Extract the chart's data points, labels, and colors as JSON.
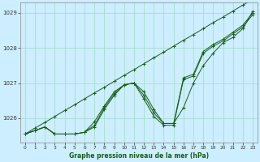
{
  "bg_color": "#cceeff",
  "grid_color": "#aaddcc",
  "line_color": "#1a5c1a",
  "xlabel": "Graphe pression niveau de la mer (hPa)",
  "xlim": [
    -0.5,
    23.5
  ],
  "ylim": [
    1025.3,
    1029.3
  ],
  "yticks": [
    1026,
    1027,
    1028,
    1029
  ],
  "xticks": [
    0,
    1,
    2,
    3,
    4,
    5,
    6,
    7,
    8,
    9,
    10,
    11,
    12,
    13,
    14,
    15,
    16,
    17,
    18,
    19,
    20,
    21,
    22,
    23
  ],
  "series": [
    [
      1025.55,
      1025.65,
      1025.75,
      1025.55,
      1025.55,
      1025.55,
      1025.6,
      1025.75,
      1026.25,
      1026.65,
      1026.95,
      1027.0,
      1026.75,
      1026.25,
      1025.85,
      1025.85,
      1026.3,
      1027.0,
      1027.5,
      1027.85,
      1028.15,
      1028.3,
      1028.55,
      1029.05
    ],
    [
      1025.55,
      1025.65,
      1025.75,
      1025.55,
      1025.55,
      1025.55,
      1025.6,
      1025.8,
      1026.3,
      1026.7,
      1026.95,
      1027.0,
      1026.55,
      1026.05,
      1025.8,
      1025.8,
      1027.1,
      1027.2,
      1027.85,
      1028.05,
      1028.2,
      1028.4,
      1028.6,
      1028.95
    ],
    [
      1025.55,
      1025.65,
      1025.75,
      1025.55,
      1025.55,
      1025.55,
      1025.6,
      1025.9,
      1026.35,
      1026.75,
      1026.95,
      1027.0,
      1026.65,
      1026.15,
      1025.85,
      1025.85,
      1027.15,
      1027.25,
      1027.9,
      1028.1,
      1028.25,
      1028.45,
      1028.65,
      1029.0
    ],
    [
      1025.55,
      1025.72,
      1025.88,
      1026.05,
      1026.22,
      1026.38,
      1026.55,
      1026.72,
      1026.88,
      1027.05,
      1027.22,
      1027.38,
      1027.55,
      1027.72,
      1027.88,
      1028.05,
      1028.22,
      1028.38,
      1028.55,
      1028.72,
      1028.88,
      1029.05,
      1029.22,
      1029.38
    ]
  ]
}
